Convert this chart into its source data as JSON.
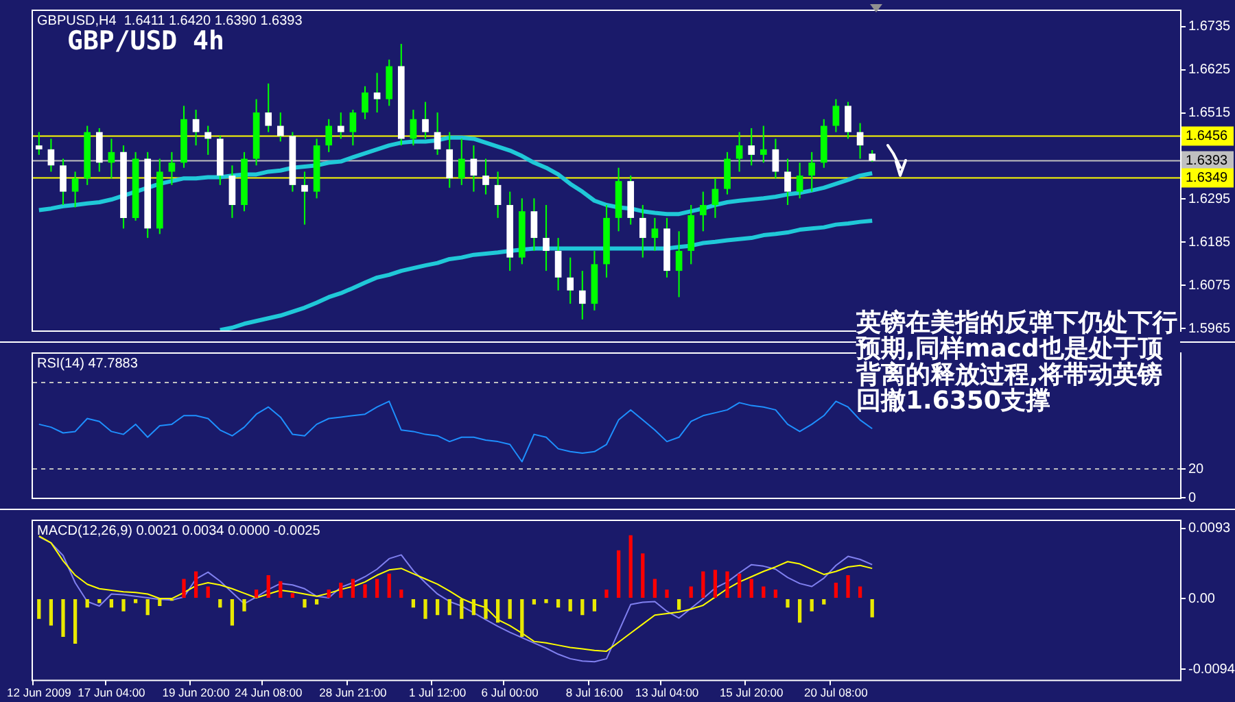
{
  "chart_data": [
    {
      "type": "candlestick",
      "title": "GBP/USD 4h",
      "annotations": [
        "GBPUSD,H4  1.6411 1.6420 1.6390 1.6393",
        "英镑在美指的反弹下仍处下行预期,同样macd也是处于顶背离的释放过程,将带动英镑回撤1.6350支撑"
      ],
      "color": "#00ff00",
      "ohlc": [
        [
          1.6432,
          1.6466,
          1.6408,
          1.6422
        ],
        [
          1.6422,
          1.6449,
          1.6365,
          1.6381
        ],
        [
          1.6381,
          1.6398,
          1.628,
          1.6314
        ],
        [
          1.6314,
          1.6365,
          1.6274,
          1.6348
        ],
        [
          1.6348,
          1.6482,
          1.6331,
          1.6466
        ],
        [
          1.6466,
          1.6476,
          1.6365,
          1.6388
        ],
        [
          1.6388,
          1.6449,
          1.6348,
          1.6415
        ],
        [
          1.6415,
          1.6432,
          1.622,
          1.6247
        ],
        [
          1.6247,
          1.6415,
          1.624,
          1.6398
        ],
        [
          1.6398,
          1.6415,
          1.6196,
          1.622
        ],
        [
          1.622,
          1.6398,
          1.6206,
          1.6365
        ],
        [
          1.6365,
          1.6415,
          1.6331,
          1.6388
        ],
        [
          1.6388,
          1.6533,
          1.6375,
          1.6499
        ],
        [
          1.6499,
          1.6523,
          1.6432,
          1.6466
        ],
        [
          1.6466,
          1.6482,
          1.6408,
          1.6449
        ],
        [
          1.6449,
          1.6456,
          1.6331,
          1.6355
        ],
        [
          1.6355,
          1.6381,
          1.6247,
          1.628
        ],
        [
          1.628,
          1.6415,
          1.6264,
          1.6398
        ],
        [
          1.6398,
          1.655,
          1.6381,
          1.6516
        ],
        [
          1.6516,
          1.659,
          1.6466,
          1.6482
        ],
        [
          1.6482,
          1.6516,
          1.6442,
          1.6456
        ],
        [
          1.6456,
          1.6466,
          1.6314,
          1.6331
        ],
        [
          1.6331,
          1.6365,
          1.623,
          1.6314
        ],
        [
          1.6314,
          1.6449,
          1.6297,
          1.6432
        ],
        [
          1.6432,
          1.6499,
          1.6415,
          1.6482
        ],
        [
          1.6482,
          1.6516,
          1.6449,
          1.6466
        ],
        [
          1.6466,
          1.6523,
          1.6432,
          1.6516
        ],
        [
          1.6516,
          1.6583,
          1.6499,
          1.6567
        ],
        [
          1.6567,
          1.6617,
          1.6516,
          1.655
        ],
        [
          1.655,
          1.6651,
          1.6533,
          1.6634
        ],
        [
          1.6634,
          1.6691,
          1.6432,
          1.6449
        ],
        [
          1.6449,
          1.6523,
          1.6432,
          1.6499
        ],
        [
          1.6499,
          1.6543,
          1.6449,
          1.6466
        ],
        [
          1.6466,
          1.6516,
          1.6408,
          1.6422
        ],
        [
          1.6422,
          1.6466,
          1.6324,
          1.6348
        ],
        [
          1.6348,
          1.6449,
          1.6331,
          1.6398
        ],
        [
          1.6398,
          1.6432,
          1.6314,
          1.6355
        ],
        [
          1.6355,
          1.6398,
          1.6307,
          1.6331
        ],
        [
          1.6331,
          1.6365,
          1.6247,
          1.628
        ],
        [
          1.628,
          1.6314,
          1.6112,
          1.6146
        ],
        [
          1.6146,
          1.6297,
          1.6129,
          1.6264
        ],
        [
          1.6264,
          1.6297,
          1.6163,
          1.6196
        ],
        [
          1.6196,
          1.628,
          1.6112,
          1.6163
        ],
        [
          1.6163,
          1.6196,
          1.6062,
          1.6095
        ],
        [
          1.6095,
          1.6146,
          1.6028,
          1.6062
        ],
        [
          1.6062,
          1.6112,
          1.5988,
          1.6028
        ],
        [
          1.6028,
          1.6163,
          1.6011,
          1.6129
        ],
        [
          1.6129,
          1.628,
          1.6095,
          1.6247
        ],
        [
          1.6247,
          1.6375,
          1.6213,
          1.6341
        ],
        [
          1.6341,
          1.6355,
          1.623,
          1.6247
        ],
        [
          1.6247,
          1.628,
          1.6146,
          1.6196
        ],
        [
          1.6196,
          1.6247,
          1.6163,
          1.622
        ],
        [
          1.622,
          1.6247,
          1.6095,
          1.6112
        ],
        [
          1.6112,
          1.6213,
          1.6045,
          1.6163
        ],
        [
          1.6163,
          1.628,
          1.6129,
          1.6254
        ],
        [
          1.6254,
          1.6314,
          1.6213,
          1.628
        ],
        [
          1.628,
          1.6348,
          1.6247,
          1.6321
        ],
        [
          1.6321,
          1.6415,
          1.6307,
          1.6398
        ],
        [
          1.6398,
          1.6466,
          1.6365,
          1.6432
        ],
        [
          1.6432,
          1.6476,
          1.6381,
          1.6408
        ],
        [
          1.6408,
          1.6482,
          1.6388,
          1.6422
        ],
        [
          1.6422,
          1.6449,
          1.6348,
          1.6365
        ],
        [
          1.6365,
          1.6398,
          1.628,
          1.6314
        ],
        [
          1.6314,
          1.6388,
          1.6297,
          1.6355
        ],
        [
          1.6355,
          1.6415,
          1.6314,
          1.6388
        ],
        [
          1.6388,
          1.6499,
          1.6375,
          1.6482
        ],
        [
          1.6482,
          1.655,
          1.6466,
          1.6533
        ],
        [
          1.6533,
          1.6543,
          1.6449,
          1.6466
        ],
        [
          1.6466,
          1.6489,
          1.6398,
          1.6432
        ],
        [
          1.6411,
          1.642,
          1.639,
          1.6393
        ],
        null,
        null,
        null,
        null,
        null,
        null,
        null,
        null,
        null,
        null,
        null,
        null,
        null,
        null,
        null,
        null,
        null,
        null,
        null,
        null,
        null,
        null,
        null,
        null,
        null
      ],
      "colors": [
        "#ffffff",
        "#ffffff",
        "#ffffff",
        "#00ff00",
        "#00ff00",
        "#ffffff",
        "#00ff00",
        "#ffffff",
        "#00ff00",
        "#ffffff",
        "#00ff00",
        "#00ff00",
        "#00ff00",
        "#ffffff",
        "#ffffff",
        "#ffffff",
        "#ffffff",
        "#00ff00",
        "#00ff00",
        "#ffffff",
        "#ffffff",
        "#ffffff",
        "#ffffff",
        "#00ff00",
        "#00ff00",
        "#ffffff",
        "#00ff00",
        "#00ff00",
        "#ffffff",
        "#00ff00",
        "#ffffff",
        "#00ff00",
        "#ffffff",
        "#ffffff",
        "#ffffff",
        "#00ff00",
        "#ffffff",
        "#ffffff",
        "#ffffff",
        "#ffffff",
        "#00ff00",
        "#ffffff",
        "#ffffff",
        "#ffffff",
        "#ffffff",
        "#ffffff",
        "#00ff00",
        "#00ff00",
        "#00ff00",
        "#ffffff",
        "#ffffff",
        "#00ff00",
        "#ffffff",
        "#00ff00",
        "#00ff00",
        "#00ff00",
        "#00ff00",
        "#00ff00",
        "#00ff00",
        "#ffffff",
        "#00ff00",
        "#ffffff",
        "#ffffff",
        "#00ff00",
        "#00ff00",
        "#00ff00",
        "#00ff00",
        "#ffffff",
        "#ffffff",
        "#ffffff",
        null,
        null,
        null,
        null,
        null,
        null,
        null,
        null,
        null,
        null,
        null,
        null,
        null,
        null,
        null,
        null,
        null,
        null,
        null,
        null,
        null,
        null,
        null,
        null,
        null
      ],
      "series": [
        {
          "type": "line",
          "color": "#20c8d8",
          "values": [
            1.6267,
            1.6271,
            1.6277,
            1.628,
            1.6284,
            1.6287,
            1.6294,
            1.6304,
            1.6314,
            1.6324,
            1.6334,
            1.6341,
            1.6348,
            1.6348,
            1.6351,
            1.6351,
            1.6355,
            1.6358,
            1.6358,
            1.6365,
            1.6368,
            1.6375,
            1.6378,
            1.6381,
            1.6388,
            1.6391,
            1.6402,
            1.6412,
            1.6422,
            1.6432,
            1.6439,
            1.6442,
            1.6442,
            1.6445,
            1.6452,
            1.6452,
            1.6449,
            1.6439,
            1.6429,
            1.6419,
            1.6405,
            1.6388,
            1.6375,
            1.6358,
            1.6334,
            1.6314,
            1.6291,
            1.628,
            1.6274,
            1.6271,
            1.6264,
            1.626,
            1.6257,
            1.6257,
            1.6264,
            1.6271,
            1.628,
            1.6287,
            1.6291,
            1.6294,
            1.6297,
            1.6301,
            1.6307,
            1.6311,
            1.6317,
            1.6324,
            1.6334,
            1.6344,
            1.6355,
            1.6361,
            null,
            null,
            null,
            null,
            null,
            null,
            null,
            null,
            null,
            null,
            null,
            null,
            null,
            null,
            null,
            null,
            null,
            null,
            null,
            null,
            null,
            null,
            null,
            null,
            null
          ]
        },
        {
          "type": "line",
          "color": "#20c8d8",
          "values": [
            null,
            null,
            null,
            null,
            null,
            null,
            null,
            null,
            null,
            null,
            null,
            null,
            null,
            null,
            null,
            1.5961,
            1.5967,
            1.5977,
            1.5984,
            1.5991,
            1.5998,
            1.6008,
            1.6018,
            1.6031,
            1.6045,
            1.6055,
            1.6068,
            1.6082,
            1.6095,
            1.6102,
            1.6112,
            1.6119,
            1.6126,
            1.6132,
            1.6142,
            1.6146,
            1.6153,
            1.6156,
            1.6159,
            1.6163,
            1.6166,
            1.6169,
            1.6169,
            1.6169,
            1.6169,
            1.6169,
            1.6169,
            1.6169,
            1.6169,
            1.6169,
            1.6169,
            1.6169,
            1.6169,
            1.6173,
            1.6176,
            1.6183,
            1.6186,
            1.619,
            1.6193,
            1.6196,
            1.6203,
            1.6206,
            1.621,
            1.6217,
            1.622,
            1.6223,
            1.623,
            1.6233,
            1.6237,
            1.624,
            null,
            null,
            null,
            null,
            null,
            null,
            null,
            null,
            null,
            null,
            null,
            null,
            null,
            null,
            null,
            null,
            null,
            null,
            null,
            null,
            null,
            null,
            null,
            null,
            null
          ]
        }
      ],
      "ylim": [
        1.596,
        1.6775
      ],
      "yticks": [
        1.5965,
        1.6075,
        1.6185,
        1.6295,
        1.6515,
        1.6625,
        1.6735
      ],
      "ref_lines": [
        {
          "axis": "y",
          "value": 1.6456,
          "label": "1.6456",
          "color": "#ffff00"
        },
        {
          "axis": "y",
          "value": 1.6393,
          "label": "1.6393",
          "color": "#c0c0c0"
        },
        {
          "axis": "y",
          "value": 1.6349,
          "label": "1.6349",
          "color": "#ffff00"
        }
      ],
      "tick_labels": "y"
    },
    {
      "type": "line",
      "annotations": [
        "RSI(14) 47.7883"
      ],
      "series": [
        {
          "color": "#1e90ff",
          "values": [
            51,
            49,
            45,
            46,
            55,
            53,
            46,
            44,
            51,
            42,
            50,
            51,
            57,
            57,
            55,
            47,
            43,
            49,
            58,
            63,
            56,
            44,
            43,
            51,
            55,
            56,
            57,
            58,
            63,
            67,
            47,
            46,
            44,
            43,
            39,
            42,
            42,
            40,
            39,
            37,
            25,
            44,
            42,
            34,
            32,
            31,
            32,
            37,
            54,
            61,
            54,
            47,
            39,
            42,
            53,
            57,
            59,
            61,
            66,
            64,
            63,
            61,
            51,
            46,
            51,
            57,
            67,
            63,
            54,
            48,
            null,
            null,
            null,
            null,
            null,
            null,
            null,
            null,
            null,
            null,
            null,
            null,
            null,
            null,
            null,
            null,
            null,
            null,
            null,
            null,
            null,
            null,
            null,
            null,
            null
          ]
        }
      ],
      "ylim": [
        0,
        100
      ],
      "yticks": [
        20,
        0
      ],
      "ref_lines": [
        {
          "axis": "y",
          "value": 80,
          "color": "#c0c0c0",
          "line_style": "dashed"
        },
        {
          "axis": "y",
          "value": 20,
          "color": "#c0c0c0",
          "line_style": "dashed"
        }
      ],
      "tick_labels": "y"
    },
    {
      "type": "bar",
      "annotations": [
        "MACD(12,26,9) 0.0021 0.0034 0.0000 -0.0025"
      ],
      "categories": [
        "12 Jun 2009",
        null,
        null,
        null,
        null,
        null,
        "17 Jun 04:00",
        null,
        null,
        null,
        null,
        null,
        null,
        "19 Jun 20:00",
        null,
        null,
        null,
        null,
        null,
        "24 Jun 08:00",
        null,
        null,
        null,
        null,
        null,
        null,
        "28 Jun 21:00",
        null,
        null,
        null,
        null,
        null,
        null,
        "1 Jul 12:00",
        null,
        null,
        null,
        null,
        null,
        "6 Jul 00:00",
        null,
        null,
        null,
        null,
        null,
        null,
        "8 Jul 16:00",
        null,
        null,
        null,
        null,
        null,
        "13 Jul 04:00",
        null,
        null,
        null,
        null,
        null,
        null,
        "15 Jul 20:00",
        null,
        null,
        null,
        null,
        null,
        null,
        "20 Jul 08:00",
        null,
        null,
        null,
        null,
        null,
        null,
        null,
        null,
        null,
        null,
        null,
        null,
        null,
        null,
        null,
        null,
        null,
        null,
        null,
        null,
        null,
        null,
        null,
        null,
        null,
        null,
        null,
        null
      ],
      "series": [
        {
          "type": "bar",
          "values": [
            -0.0027,
            -0.0036,
            -0.0051,
            -0.006,
            -0.0012,
            -0.0006,
            -0.0012,
            -0.0017,
            -0.0006,
            -0.0022,
            -0.001,
            -0.0003,
            0.0026,
            0.0036,
            0.0016,
            -0.0012,
            -0.0036,
            -0.0017,
            0.0012,
            0.0031,
            0.0023,
            0.0007,
            -0.0012,
            -0.0008,
            0.0012,
            0.0021,
            0.0026,
            0.0019,
            0.0026,
            0.0033,
            0.0012,
            -0.0012,
            -0.0027,
            -0.0022,
            -0.0022,
            -0.0027,
            -0.0022,
            -0.0027,
            -0.0032,
            -0.0027,
            -0.0051,
            -0.0008,
            -0.0006,
            -0.0012,
            -0.0017,
            -0.0022,
            -0.0017,
            0.0012,
            0.0064,
            0.0084,
            0.006,
            0.0026,
            0.0012,
            -0.0015,
            0.0016,
            0.0036,
            0.0038,
            0.0036,
            0.0033,
            0.0026,
            0.0016,
            0.0012,
            -0.0012,
            -0.0032,
            -0.0017,
            -0.0008,
            0.0021,
            0.0031,
            0.0016,
            -0.0025,
            null,
            null,
            null,
            null,
            null,
            null,
            null,
            null,
            null,
            null,
            null,
            null,
            null,
            null,
            null,
            null,
            null,
            null,
            null,
            null,
            null,
            null,
            null,
            null,
            null
          ],
          "colors": [
            "#e8e800",
            "#e8e800",
            "#e8e800",
            "#e8e800",
            "#e8e800",
            "#e8e800",
            "#e8e800",
            "#e8e800",
            "#e8e800",
            "#e8e800",
            "#e8e800",
            "#e8e800",
            "#ff0000",
            "#ff0000",
            "#ff0000",
            "#e8e800",
            "#e8e800",
            "#e8e800",
            "#ff0000",
            "#ff0000",
            "#ff0000",
            "#ff0000",
            "#e8e800",
            "#e8e800",
            "#ff0000",
            "#ff0000",
            "#ff0000",
            "#ff0000",
            "#ff0000",
            "#ff0000",
            "#ff0000",
            "#e8e800",
            "#e8e800",
            "#e8e800",
            "#e8e800",
            "#e8e800",
            "#e8e800",
            "#e8e800",
            "#e8e800",
            "#e8e800",
            "#e8e800",
            "#e8e800",
            "#e8e800",
            "#e8e800",
            "#e8e800",
            "#e8e800",
            "#e8e800",
            "#ff0000",
            "#ff0000",
            "#ff0000",
            "#ff0000",
            "#ff0000",
            "#ff0000",
            "#e8e800",
            "#ff0000",
            "#ff0000",
            "#ff0000",
            "#ff0000",
            "#ff0000",
            "#ff0000",
            "#ff0000",
            "#ff0000",
            "#e8e800",
            "#e8e800",
            "#e8e800",
            "#e8e800",
            "#ff0000",
            "#ff0000",
            "#ff0000",
            "#e8e800",
            null,
            null,
            null,
            null,
            null,
            null,
            null,
            null,
            null,
            null,
            null,
            null,
            null,
            null,
            null,
            null,
            null,
            null,
            null,
            null,
            null,
            null,
            null,
            null,
            null
          ]
        },
        {
          "type": "line",
          "color": "#ffff00",
          "values": [
            0.0083,
            0.0074,
            0.005,
            0.0031,
            0.0019,
            0.0013,
            0.0011,
            0.0009,
            0.0008,
            0.0006,
            0.0,
            0.0,
            0.0008,
            0.0017,
            0.0021,
            0.0018,
            0.0013,
            0.0007,
            0.0001,
            0.0006,
            0.0011,
            0.0009,
            0.0006,
            0.0003,
            0.0007,
            0.0012,
            0.0016,
            0.0022,
            0.0031,
            0.0038,
            0.004,
            0.0033,
            0.0026,
            0.0019,
            0.001,
            0.0,
            -0.0007,
            -0.0012,
            -0.0028,
            -0.0036,
            -0.0046,
            -0.0057,
            -0.0059,
            -0.0062,
            -0.0065,
            -0.0067,
            -0.0069,
            -0.007,
            -0.0058,
            -0.0046,
            -0.0034,
            -0.0022,
            -0.002,
            -0.0018,
            -0.0014,
            -0.0009,
            0.0002,
            0.0013,
            0.0022,
            0.0029,
            0.0036,
            0.0042,
            0.0049,
            0.0046,
            0.0039,
            0.0032,
            0.0036,
            0.0042,
            0.0044,
            0.004,
            null,
            null,
            null,
            null,
            null,
            null,
            null,
            null,
            null,
            null,
            null,
            null,
            null,
            null,
            null,
            null,
            null,
            null,
            null,
            null,
            null,
            null,
            null,
            null,
            null
          ]
        },
        {
          "type": "line",
          "color": "#8080f0",
          "values": [
            0.0082,
            0.0074,
            0.0057,
            0.0021,
            -0.0004,
            -0.001,
            0.0006,
            0.0005,
            0.0003,
            0.0001,
            -0.0001,
            -0.0002,
            0.0002,
            0.0026,
            0.0035,
            0.0023,
            0.0008,
            -0.0007,
            0.0002,
            0.0012,
            0.002,
            0.0018,
            0.0013,
            0.0003,
            0.0001,
            0.0015,
            0.0021,
            0.0029,
            0.0039,
            0.0053,
            0.0058,
            0.0037,
            0.0021,
            0.0006,
            -0.0004,
            -0.001,
            -0.0019,
            -0.0028,
            -0.0037,
            -0.0045,
            -0.0052,
            -0.0059,
            -0.0066,
            -0.0074,
            -0.008,
            -0.0083,
            -0.0084,
            -0.008,
            -0.0044,
            -0.0008,
            -0.0005,
            -0.0004,
            -0.0017,
            -0.0026,
            -0.0013,
            0.0,
            0.0014,
            0.0022,
            0.0034,
            0.0045,
            0.0043,
            0.0039,
            0.0028,
            0.002,
            0.0016,
            0.0027,
            0.0044,
            0.0056,
            0.0052,
            0.0045,
            null,
            null,
            null,
            null,
            null,
            null,
            null,
            null,
            null,
            null,
            null,
            null,
            null,
            null,
            null,
            null,
            null,
            null,
            null,
            null,
            null,
            null,
            null,
            null,
            null
          ]
        }
      ],
      "ylim": [
        -0.0108,
        0.0103
      ],
      "yticks": [
        0.0093,
        {
          "value": 0,
          "label": "0.00"
        },
        -0.0094
      ]
    }
  ]
}
